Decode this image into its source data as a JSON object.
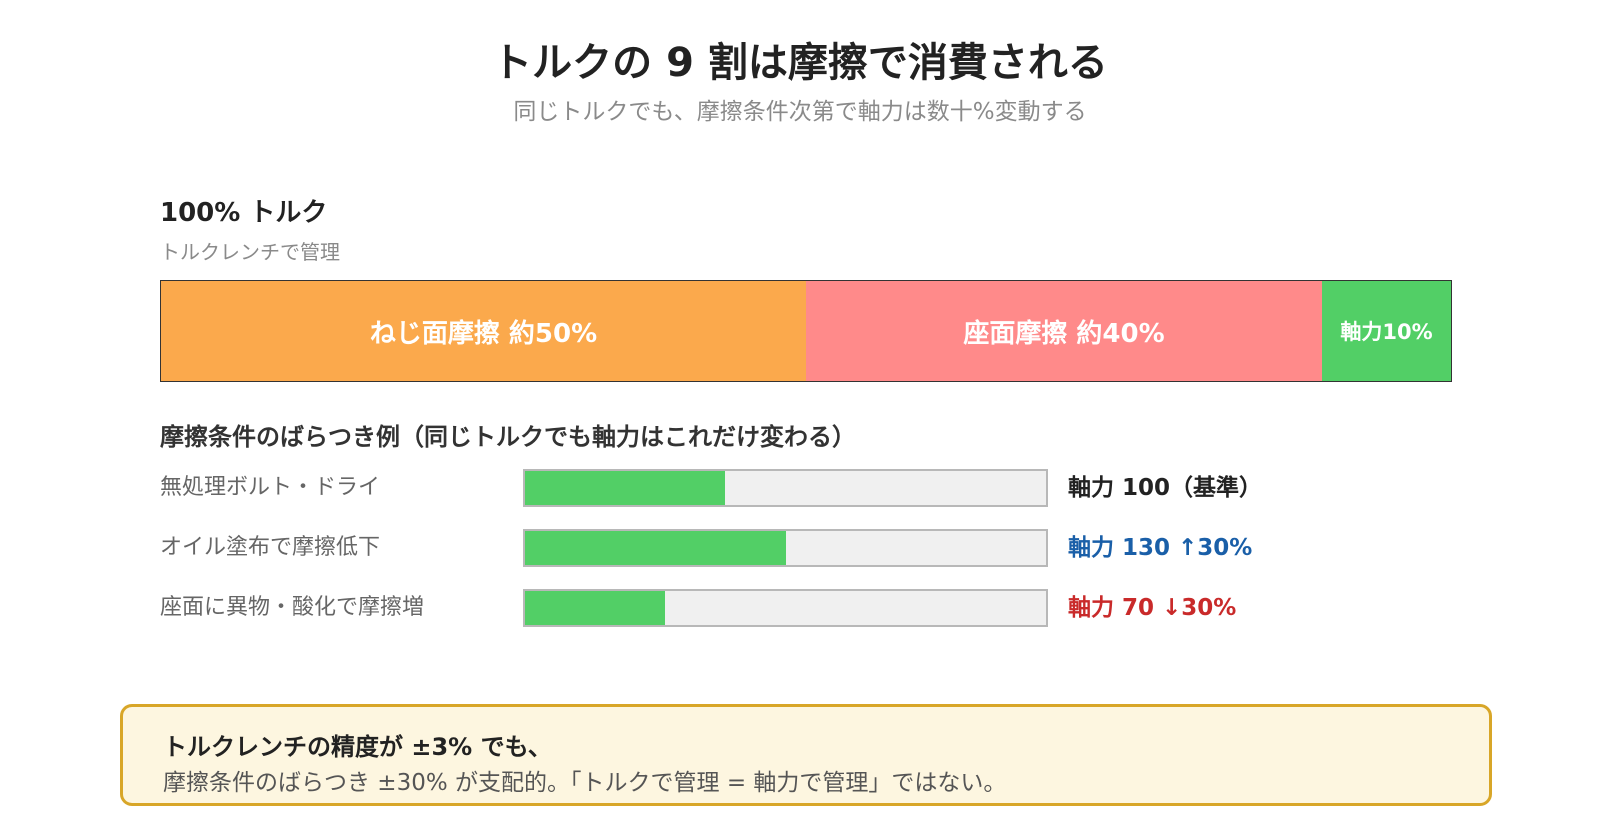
{
  "title": "トルクの 9 割は摩擦で消費される",
  "subtitle": "同じトルクでも、摩擦条件次第で軸力は数十%変動する",
  "chart_data": [
    {
      "type": "bar",
      "subtype": "stacked-100",
      "title": "100% トルク",
      "subtitle": "トルクレンチで管理",
      "series": [
        {
          "name": "ねじ面摩擦",
          "label": "ねじ面摩擦 約50%",
          "value": 50,
          "color": "#fba94c"
        },
        {
          "name": "座面摩擦",
          "label": "座面摩擦 約40%",
          "value": 40,
          "color": "#ff8a8a"
        },
        {
          "name": "軸力",
          "label": "軸力10%",
          "value": 10,
          "color": "#52cf66"
        }
      ],
      "total": 100
    },
    {
      "type": "bar",
      "orientation": "horizontal",
      "title": "摩擦条件のばらつき例（同じトルクでも軸力はこれだけ変わる）",
      "xlim": [
        0,
        260
      ],
      "categories": [
        "無処理ボルト・ドライ",
        "オイル塗布で摩擦低下",
        "座面に異物・酸化で摩擦増"
      ],
      "values": [
        100,
        130,
        70
      ],
      "value_labels": [
        "軸力 100（基準）",
        "軸力 130 ↑30%",
        "軸力 70 ↓30%"
      ],
      "value_label_colors": [
        "#222222",
        "#1a5fa8",
        "#c92a2a"
      ],
      "bar_color": "#52cf66",
      "track_color": "#f0f0f0"
    }
  ],
  "callout": {
    "line1": "トルクレンチの精度が ±3% でも、",
    "line2": "摩擦条件のばらつき ±30% が支配的。「トルクで管理 = 軸力で管理」ではない。"
  }
}
